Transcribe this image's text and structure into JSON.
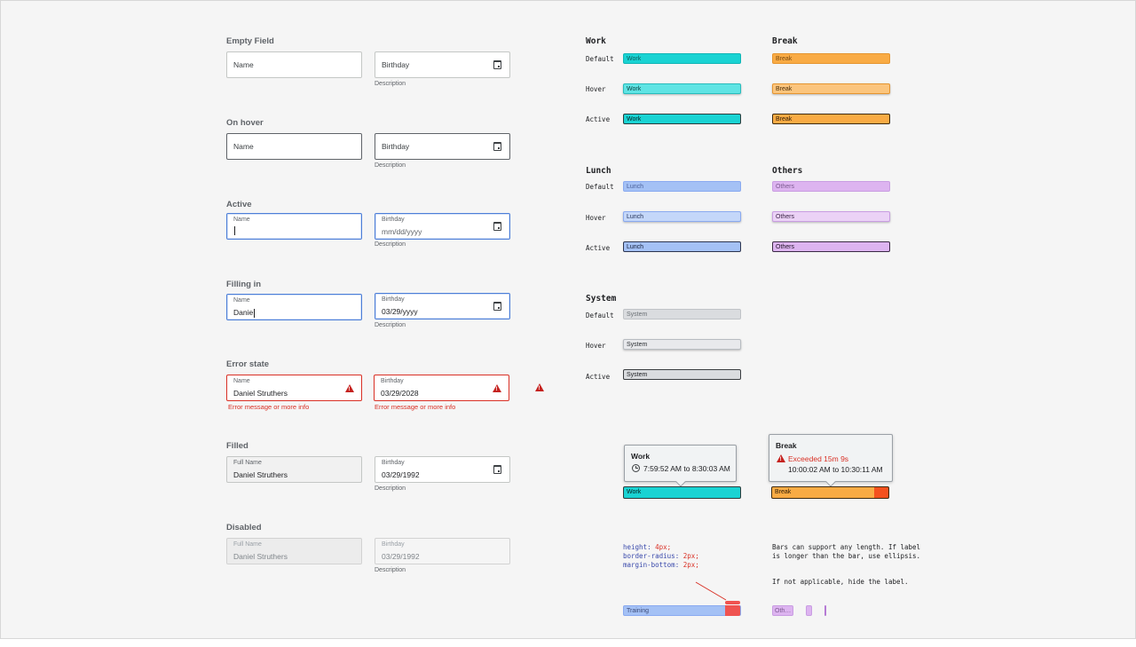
{
  "form": {
    "sections": {
      "empty": "Empty Field",
      "hover": "On hover",
      "active": "Active",
      "filling": "Filling in",
      "error": "Error state",
      "filled": "Filled",
      "disabled": "Disabled"
    },
    "name_label": "Name",
    "full_name_label": "Full Name",
    "birthday_label": "Birthday",
    "description": "Description",
    "date_placeholder": "mm/dd/yyyy",
    "filling_name": "Danie",
    "filling_date": "03/29/yyyy",
    "error_name": "Daniel Struthers",
    "error_date": "03/29/2028",
    "error_message": "Error message or more info",
    "filled_name": "Daniel Struthers",
    "filled_date": "03/29/1992",
    "disabled_name": "Daniel Struthers",
    "disabled_date": "03/29/1992"
  },
  "bars": {
    "states": {
      "default": "Default",
      "hover": "Hover",
      "active": "Active"
    },
    "groups": {
      "work": {
        "title": "Work",
        "label": "Work",
        "color": "#19d3d3"
      },
      "break": {
        "title": "Break",
        "label": "Break",
        "color": "#f9ab44"
      },
      "lunch": {
        "title": "Lunch",
        "label": "Lunch",
        "color": "#a4c1f5"
      },
      "others": {
        "title": "Others",
        "label": "Others",
        "color": "#ddb4f0"
      },
      "system": {
        "title": "System",
        "label": "System",
        "color": "#dadcdf"
      }
    }
  },
  "tooltips": {
    "work": {
      "title": "Work",
      "time": "7:59:52 AM to 8:30:03 AM",
      "bar_label": "Work"
    },
    "break": {
      "title": "Break",
      "exceeded": "Exceeded 15m 9s",
      "time": "10:00:02 AM to 10:30:11 AM",
      "bar_label": "Break"
    }
  },
  "code": {
    "height_key": "height:",
    "height_val": "4px;",
    "radius_key": "border-radius:",
    "radius_val": "2px;",
    "margin_key": "margin-bottom:",
    "margin_val": "2px;"
  },
  "notes": {
    "line1": "Bars can support any length. If label is longer than the bar, use ellipsis.",
    "line2": "If not applicable, hide the label.",
    "training_label": "Training",
    "others_short": "Oth…"
  }
}
